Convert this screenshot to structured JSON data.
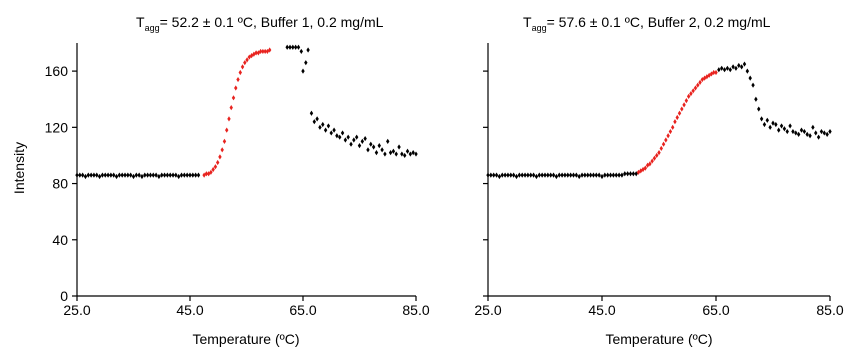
{
  "chart_data": [
    {
      "type": "scatter",
      "title_prefix": "T",
      "title_sub": "agg",
      "title_rest": "= 52.2 ± 0.1 ºC, Buffer 1, 0.2 mg/mL",
      "xlabel": "Temperature (ºC)",
      "ylabel": "Intensity",
      "xlim": [
        25,
        85
      ],
      "ylim": [
        0,
        180
      ],
      "xticks": [
        "25.0",
        "45.0",
        "65.0",
        "85.0"
      ],
      "yticks": [
        "0",
        "40",
        "80",
        "120",
        "160"
      ],
      "series_colors": {
        "data": "#000000",
        "fit": "#e8231f"
      },
      "series": [
        {
          "role": "data",
          "x": [
            25.0,
            25.5,
            26.0,
            26.5,
            27.0,
            27.5,
            28.0,
            28.5,
            29.0,
            29.5,
            30.0,
            30.5,
            31.0,
            31.5,
            32.0,
            32.5,
            33.0,
            33.5,
            34.0,
            34.5,
            35.0,
            35.5,
            36.0,
            36.5,
            37.0,
            37.5,
            38.0,
            38.5,
            39.0,
            39.5,
            40.0,
            40.5,
            41.0,
            41.5,
            42.0,
            42.5,
            43.0,
            43.5,
            44.0,
            44.5,
            45.0,
            45.5,
            46.0,
            46.5,
            62.2,
            62.7,
            63.2,
            63.7,
            64.2,
            64.7,
            65.0,
            65.5,
            65.9,
            66.5,
            67.0,
            67.5,
            68.0,
            68.5,
            69.0,
            69.5,
            70.0,
            70.5,
            71.0,
            71.5,
            72.0,
            72.5,
            73.0,
            73.5,
            74.0,
            74.5,
            75.0,
            75.5,
            76.0,
            76.5,
            77.0,
            77.5,
            78.0,
            78.5,
            79.0,
            79.5,
            80.0,
            80.5,
            81.0,
            81.5,
            82.0,
            82.5,
            83.0,
            83.5,
            84.0,
            84.5,
            85.0
          ],
          "y": [
            86,
            86,
            86,
            85,
            86,
            86,
            86,
            86,
            85,
            86,
            86,
            86,
            86,
            86,
            85,
            86,
            86,
            86,
            86,
            86,
            85,
            86,
            86,
            85,
            86,
            86,
            86,
            86,
            86,
            85,
            86,
            86,
            86,
            86,
            86,
            86,
            85,
            86,
            86,
            86,
            86,
            86,
            86,
            86,
            177,
            177,
            177,
            177,
            177,
            174,
            160,
            166,
            175,
            130,
            124,
            126,
            120,
            122,
            118,
            121,
            116,
            118,
            114,
            113,
            116,
            111,
            113,
            108,
            111,
            113,
            107,
            110,
            112,
            104,
            108,
            106,
            102,
            107,
            104,
            101,
            110,
            102,
            103,
            101,
            106,
            101,
            100,
            103,
            101,
            102,
            101
          ]
        },
        {
          "role": "fit",
          "x": [
            47.5,
            47.9,
            48.3,
            48.7,
            49.1,
            49.5,
            49.9,
            50.3,
            50.7,
            51.1,
            51.5,
            51.9,
            52.3,
            52.7,
            53.1,
            53.5,
            53.9,
            54.3,
            54.7,
            55.1,
            55.5,
            55.9,
            56.3,
            56.7,
            57.1,
            57.5,
            57.9,
            58.3,
            58.7,
            59.1
          ],
          "y": [
            86,
            87,
            87,
            88,
            90,
            92,
            95,
            99,
            104,
            110,
            118,
            126,
            134,
            141,
            148,
            154,
            159,
            163,
            166,
            168,
            170,
            171,
            172,
            173,
            173,
            174,
            174,
            174,
            174,
            175
          ]
        }
      ]
    },
    {
      "type": "scatter",
      "title_prefix": "T",
      "title_sub": "agg",
      "title_rest": "= 57.6 ± 0.1 ºC, Buffer 2, 0.2 mg/mL",
      "xlabel": "Temperature (ºC)",
      "ylabel": "",
      "xlim": [
        25,
        85
      ],
      "ylim": [
        0,
        180
      ],
      "xticks": [
        "25.0",
        "45.0",
        "65.0",
        "85.0"
      ],
      "yticks": [],
      "series_colors": {
        "data": "#000000",
        "fit": "#e8231f"
      },
      "series": [
        {
          "role": "data",
          "x": [
            25.0,
            25.5,
            26.0,
            26.5,
            27.0,
            27.5,
            28.0,
            28.5,
            29.0,
            29.5,
            30.0,
            30.5,
            31.0,
            31.5,
            32.0,
            32.5,
            33.0,
            33.5,
            34.0,
            34.5,
            35.0,
            35.5,
            36.0,
            36.5,
            37.0,
            37.5,
            38.0,
            38.5,
            39.0,
            39.5,
            40.0,
            40.5,
            41.0,
            41.5,
            42.0,
            42.5,
            43.0,
            43.5,
            44.0,
            44.5,
            45.0,
            45.5,
            46.0,
            46.5,
            47.0,
            47.5,
            48.0,
            48.5,
            49.0,
            49.5,
            50.0,
            50.5,
            51.0,
            65.5,
            66.0,
            66.5,
            67.0,
            67.5,
            68.0,
            68.5,
            69.0,
            69.5,
            70.0,
            70.5,
            71.0,
            71.5,
            72.0,
            72.5,
            73.0,
            73.5,
            74.0,
            74.5,
            75.0,
            75.5,
            76.0,
            76.5,
            77.0,
            77.5,
            78.0,
            78.5,
            79.0,
            79.5,
            80.0,
            80.5,
            81.0,
            81.5,
            82.0,
            82.5,
            83.0,
            83.5,
            84.0,
            84.5,
            85.0
          ],
          "y": [
            86,
            86,
            86,
            86,
            85,
            86,
            86,
            86,
            86,
            86,
            85,
            86,
            86,
            86,
            86,
            86,
            86,
            85,
            86,
            86,
            86,
            86,
            86,
            86,
            85,
            86,
            86,
            86,
            86,
            86,
            86,
            86,
            85,
            86,
            86,
            86,
            86,
            86,
            86,
            86,
            85,
            86,
            86,
            86,
            86,
            86,
            86,
            86,
            87,
            87,
            87,
            87,
            87,
            161,
            162,
            161,
            162,
            161,
            163,
            162,
            164,
            163,
            165,
            160,
            155,
            150,
            140,
            133,
            126,
            122,
            125,
            120,
            123,
            122,
            118,
            121,
            119,
            117,
            121,
            117,
            116,
            115,
            118,
            117,
            115,
            114,
            120,
            116,
            113,
            117,
            116,
            115,
            117
          ]
        },
        {
          "role": "fit",
          "x": [
            51.4,
            51.8,
            52.2,
            52.6,
            53.0,
            53.4,
            53.8,
            54.2,
            54.6,
            55.0,
            55.4,
            55.8,
            56.2,
            56.6,
            57.0,
            57.4,
            57.8,
            58.2,
            58.6,
            59.0,
            59.4,
            59.8,
            60.2,
            60.6,
            61.0,
            61.4,
            61.8,
            62.2,
            62.6,
            63.0,
            63.4,
            63.8,
            64.2,
            64.6,
            65.0
          ],
          "y": [
            88,
            89,
            90,
            91,
            93,
            94,
            96,
            98,
            100,
            102,
            105,
            108,
            111,
            114,
            117,
            120,
            124,
            127,
            130,
            133,
            136,
            139,
            142,
            144,
            146,
            148,
            150,
            152,
            154,
            155,
            156,
            157,
            158,
            159,
            159
          ]
        }
      ]
    }
  ]
}
